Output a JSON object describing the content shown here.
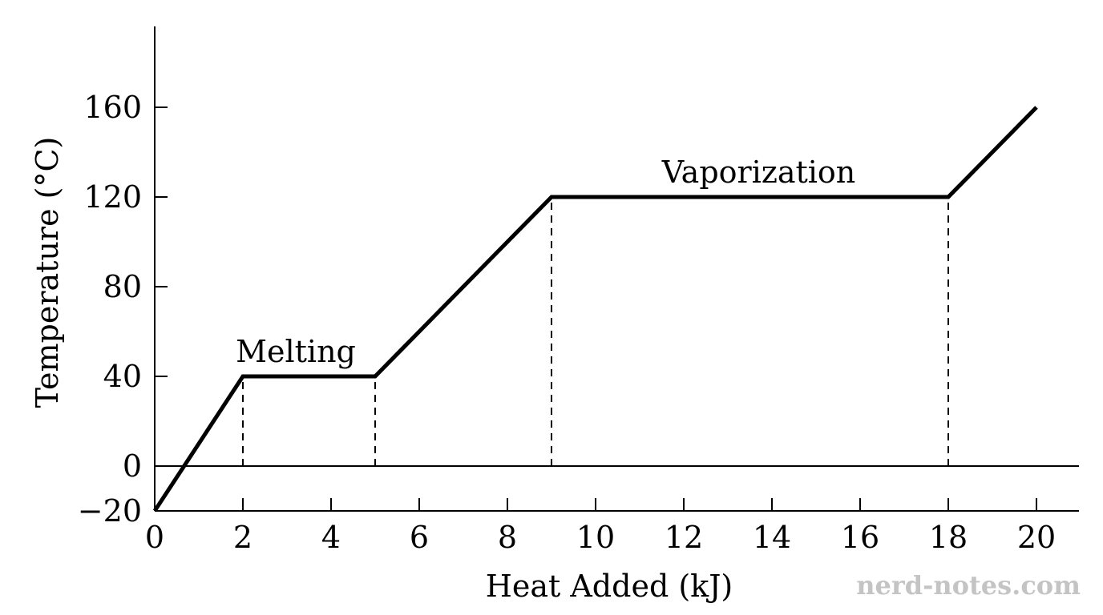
{
  "chart_data": {
    "type": "line",
    "title": "",
    "xlabel": "Heat Added (kJ)",
    "ylabel": "Temperature (°C)",
    "xlim": [
      0,
      21
    ],
    "ylim": [
      -20,
      180
    ],
    "xticks": [
      0,
      2,
      4,
      6,
      8,
      10,
      12,
      14,
      16,
      18,
      20
    ],
    "yticks": [
      -20,
      0,
      40,
      80,
      120,
      160
    ],
    "ytick_labels": [
      "−20",
      "0",
      "40",
      "80",
      "120",
      "160"
    ],
    "grid": false,
    "series": [
      {
        "x": [
          0,
          2,
          5,
          9,
          18,
          20
        ],
        "y": [
          -20,
          40,
          40,
          120,
          120,
          160
        ]
      }
    ],
    "reference_lines": {
      "horizontal": [
        0
      ],
      "vertical_dashed": [
        {
          "x": 2,
          "y_from": 0,
          "y_to": 40
        },
        {
          "x": 5,
          "y_from": 0,
          "y_to": 40
        },
        {
          "x": 9,
          "y_from": 0,
          "y_to": 120
        },
        {
          "x": 18,
          "y_from": 0,
          "y_to": 120
        }
      ]
    },
    "annotations": [
      {
        "text": "Melting",
        "x": 3.0,
        "y": 40
      },
      {
        "text": "Vaporization",
        "x": 13.5,
        "y": 120
      }
    ]
  },
  "watermark": "nerd-notes.com"
}
